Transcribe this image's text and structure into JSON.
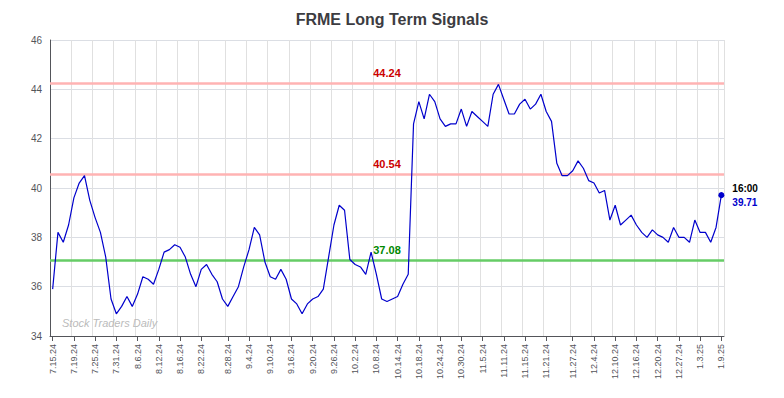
{
  "chart_data": {
    "type": "line",
    "title": "FRME Long Term Signals",
    "categories": [
      "7.15.24",
      null,
      null,
      null,
      "7.19.24",
      null,
      null,
      null,
      "7.25.24",
      null,
      null,
      null,
      "7.31.24",
      null,
      null,
      null,
      "8.6.24",
      null,
      null,
      null,
      "8.12.24",
      null,
      null,
      null,
      "8.16.24",
      null,
      null,
      null,
      "8.22.24",
      null,
      null,
      null,
      null,
      "8.28.24",
      null,
      null,
      null,
      "9.4.24",
      null,
      null,
      null,
      "9.10.24",
      null,
      null,
      null,
      "9.16.24",
      null,
      null,
      null,
      "9.20.24",
      null,
      null,
      null,
      "9.26.24",
      null,
      null,
      null,
      "10.2.24",
      null,
      null,
      null,
      "10.8.24",
      null,
      null,
      null,
      "10.14.24",
      null,
      null,
      null,
      "10.18.24",
      null,
      null,
      null,
      "10.24.24",
      null,
      null,
      null,
      "10.30.24",
      null,
      null,
      null,
      "11.5.24",
      null,
      null,
      null,
      "11.11.24",
      null,
      null,
      null,
      "11.15.24",
      null,
      null,
      null,
      "11.21.24",
      null,
      null,
      null,
      null,
      "11.27.24",
      null,
      null,
      null,
      "12.4.24",
      null,
      null,
      null,
      "12.10.24",
      null,
      null,
      null,
      "12.16.24",
      null,
      null,
      null,
      "12.20.24",
      null,
      null,
      null,
      "12.27.24",
      null,
      null,
      null,
      "1.3.25",
      null,
      null,
      null,
      "1.9.25"
    ],
    "values": [
      35.9,
      38.2,
      37.8,
      38.5,
      39.6,
      40.2,
      40.5,
      39.5,
      38.8,
      38.2,
      37.2,
      35.5,
      34.9,
      35.2,
      35.6,
      35.2,
      35.7,
      36.4,
      36.3,
      36.1,
      36.7,
      37.4,
      37.5,
      37.7,
      37.6,
      37.2,
      36.5,
      36.0,
      36.7,
      36.9,
      36.5,
      36.2,
      35.5,
      35.2,
      35.6,
      36.0,
      36.8,
      37.5,
      38.4,
      38.1,
      37.0,
      36.4,
      36.3,
      36.7,
      36.3,
      35.5,
      35.3,
      34.9,
      35.3,
      35.5,
      35.6,
      35.9,
      37.2,
      38.5,
      39.3,
      39.1,
      37.1,
      36.9,
      36.8,
      36.5,
      37.4,
      36.5,
      35.5,
      35.4,
      35.5,
      35.6,
      36.1,
      36.5,
      42.6,
      43.5,
      42.8,
      43.8,
      43.5,
      42.8,
      42.5,
      42.6,
      42.6,
      43.2,
      42.5,
      43.1,
      42.9,
      42.7,
      42.5,
      43.8,
      44.2,
      43.6,
      43.0,
      43.0,
      43.4,
      43.6,
      43.2,
      43.4,
      43.8,
      43.1,
      42.7,
      41.0,
      40.5,
      40.5,
      40.7,
      41.1,
      40.8,
      40.3,
      40.2,
      39.8,
      39.9,
      38.7,
      39.3,
      38.5,
      38.7,
      38.9,
      38.5,
      38.2,
      38.0,
      38.3,
      38.1,
      38.0,
      37.8,
      38.4,
      38.0,
      38.0,
      37.8,
      38.7,
      38.2,
      38.2,
      37.8,
      38.4,
      39.71
    ],
    "color": "#0000cc",
    "reference_lines": [
      {
        "value": 44.24,
        "label": "44.24",
        "color": "#ffb3b3",
        "label_color": "#cc0000"
      },
      {
        "value": 40.54,
        "label": "40.54",
        "color": "#ffb3b3",
        "label_color": "#cc0000"
      },
      {
        "value": 37.08,
        "label": "37.08",
        "color": "#66cc66",
        "label_color": "#008800"
      }
    ],
    "last_point": {
      "time": "16:00",
      "label": "39.71"
    },
    "watermark": "Stock Traders Daily",
    "ylim": [
      34,
      46
    ],
    "yticks": [
      34,
      36,
      38,
      40,
      42,
      44,
      46
    ],
    "grid": true
  }
}
